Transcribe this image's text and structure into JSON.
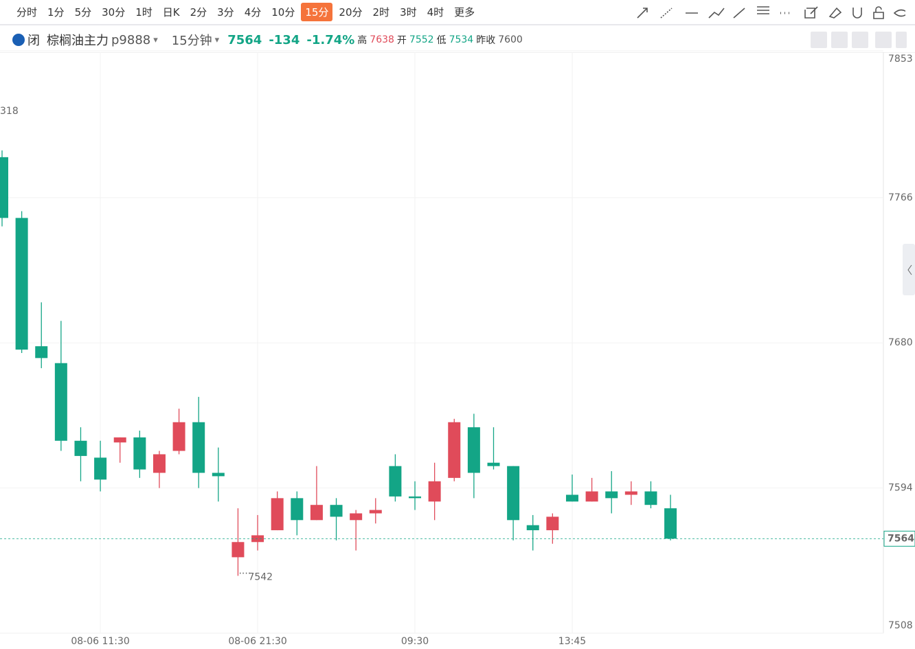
{
  "toolbar": {
    "periods": [
      "分时",
      "1分",
      "5分",
      "30分",
      "1时",
      "日K",
      "2分",
      "3分",
      "4分",
      "10分",
      "15分",
      "20分",
      "2时",
      "3时",
      "4时",
      "更多"
    ],
    "active": 10
  },
  "info": {
    "status": "闭",
    "name": "棕榈油主力",
    "code": "p9888",
    "period": "15分钟",
    "price": "7564",
    "change": "-134",
    "change_pct": "-1.74%",
    "high_label": "高",
    "high": "7638",
    "open_label": "开",
    "open": "7552",
    "low_label": "低",
    "low": "7534",
    "prev_label": "昨收",
    "prev_close": "7600"
  },
  "chart_data": {
    "type": "candlestick",
    "categories": [
      null,
      null,
      null,
      null,
      null,
      "08-06 11:30",
      null,
      null,
      null,
      null,
      null,
      null,
      null,
      "08-06 21:30",
      null,
      null,
      null,
      null,
      null,
      null,
      null,
      "09:30",
      null,
      null,
      null,
      null,
      null,
      null,
      null,
      "13:45",
      null,
      null,
      null,
      null,
      null
    ],
    "open": [
      7790,
      7754,
      7678,
      7668,
      7622,
      7612,
      7621,
      7624,
      7603,
      7616,
      7633,
      7603,
      7553,
      7562,
      7569,
      7588,
      7575,
      7584,
      7575,
      7579,
      7607,
      7589,
      7586,
      7600,
      7630,
      7609,
      7607,
      7572,
      7569,
      7590,
      7586,
      7592,
      7590,
      7592,
      7582
    ],
    "high": [
      7794,
      7758,
      7704,
      7693,
      7630,
      7622,
      7624,
      7628,
      7616,
      7641,
      7648,
      7618,
      7582,
      7578,
      7592,
      7592,
      7607,
      7588,
      7581,
      7588,
      7614,
      7598,
      7609,
      7635,
      7638,
      7630,
      7607,
      7578,
      7579,
      7602,
      7600,
      7604,
      7598,
      7598,
      7590
    ],
    "low": [
      7749,
      7674,
      7665,
      7616,
      7598,
      7592,
      7609,
      7600,
      7594,
      7614,
      7594,
      7586,
      7542,
      7557,
      7569,
      7566,
      7575,
      7563,
      7557,
      7573,
      7586,
      7581,
      7575,
      7598,
      7588,
      7605,
      7563,
      7557,
      7561,
      7586,
      7586,
      7579,
      7584,
      7582,
      7563
    ],
    "close": [
      7754,
      7676,
      7671,
      7622,
      7613,
      7599,
      7624,
      7605,
      7614,
      7633,
      7603,
      7601,
      7562,
      7566,
      7588,
      7575,
      7584,
      7577,
      7579,
      7581,
      7589,
      7588,
      7598,
      7633,
      7603,
      7607,
      7575,
      7569,
      7577,
      7586,
      7592,
      7588,
      7592,
      7584,
      7564
    ],
    "up_color": "#e04b5a",
    "down_color": "#13a586",
    "ylim": [
      7508,
      7853
    ],
    "yticks": [
      7508,
      7594,
      7680,
      7766,
      7853
    ],
    "grid": true,
    "last_price": 7564,
    "prev_close": 7600,
    "annotations": [
      "318"
    ]
  }
}
